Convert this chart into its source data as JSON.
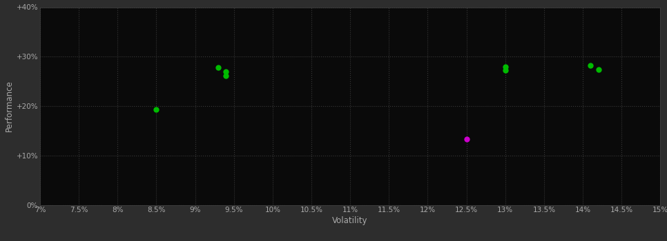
{
  "background_color": "#2d2d2d",
  "plot_bg_color": "#0a0a0a",
  "grid_color": "#3a3a3a",
  "text_color": "#aaaaaa",
  "xlabel": "Volatility",
  "ylabel": "Performance",
  "xlim": [
    0.07,
    0.15
  ],
  "ylim": [
    0.0,
    0.4
  ],
  "xticks": [
    0.07,
    0.075,
    0.08,
    0.085,
    0.09,
    0.095,
    0.1,
    0.105,
    0.11,
    0.115,
    0.12,
    0.125,
    0.13,
    0.135,
    0.14,
    0.145,
    0.15
  ],
  "yticks": [
    0.0,
    0.1,
    0.2,
    0.3,
    0.4
  ],
  "ytick_labels": [
    "0%",
    "+10%",
    "+20%",
    "+30%",
    "+40%"
  ],
  "xtick_labels": [
    "7%",
    "7.5%",
    "8%",
    "8.5%",
    "9%",
    "9.5%",
    "10%",
    "10.5%",
    "11%",
    "11.5%",
    "12%",
    "12.5%",
    "13%",
    "13.5%",
    "14%",
    "14.5%",
    "15%"
  ],
  "points_green": [
    [
      0.085,
      0.193
    ],
    [
      0.093,
      0.278
    ],
    [
      0.094,
      0.27
    ],
    [
      0.094,
      0.262
    ],
    [
      0.13,
      0.28
    ],
    [
      0.13,
      0.272
    ],
    [
      0.141,
      0.282
    ],
    [
      0.142,
      0.274
    ]
  ],
  "points_magenta": [
    [
      0.125,
      0.133
    ]
  ],
  "green_color": "#00bb00",
  "magenta_color": "#cc00cc",
  "marker_size": 6
}
